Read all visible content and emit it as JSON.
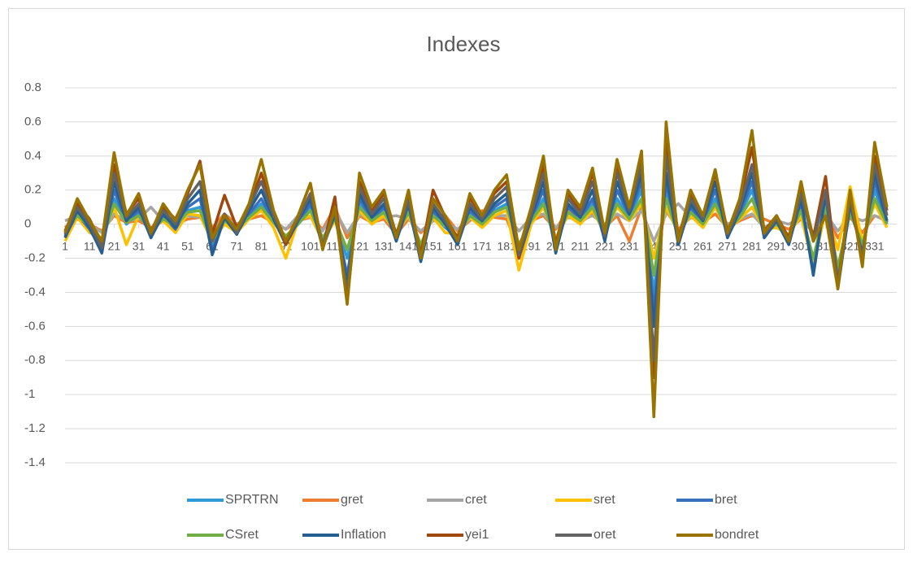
{
  "chart_data": {
    "type": "line",
    "title": "Indexes",
    "x": [
      1,
      6,
      11,
      16,
      21,
      26,
      31,
      36,
      41,
      46,
      51,
      56,
      61,
      66,
      71,
      76,
      81,
      86,
      91,
      96,
      101,
      106,
      111,
      116,
      121,
      126,
      131,
      136,
      141,
      146,
      151,
      156,
      161,
      166,
      171,
      176,
      181,
      186,
      191,
      196,
      201,
      206,
      211,
      216,
      221,
      226,
      231,
      236,
      241,
      246,
      251,
      256,
      261,
      266,
      271,
      276,
      281,
      286,
      291,
      296,
      301,
      306,
      311,
      316,
      321,
      326,
      331,
      336
    ],
    "xlim": [
      1,
      340
    ],
    "xticks": [
      1,
      11,
      21,
      31,
      41,
      51,
      61,
      71,
      81,
      91,
      101,
      111,
      121,
      131,
      141,
      151,
      161,
      171,
      181,
      191,
      201,
      211,
      221,
      231,
      241,
      251,
      261,
      271,
      281,
      291,
      301,
      311,
      321,
      331
    ],
    "ylim": [
      -1.4,
      0.8
    ],
    "yticks": [
      0.8,
      0.6,
      0.4,
      0.2,
      0,
      -0.2,
      -0.4,
      -0.6,
      -0.8,
      -1,
      -1.2,
      -1.4
    ],
    "grid": true,
    "series": [
      {
        "name": "SPRTRN",
        "color": "#2e9bd6",
        "values": [
          -0.05,
          0.05,
          -0.02,
          -0.12,
          0.15,
          0.0,
          0.06,
          -0.05,
          0.04,
          -0.02,
          0.08,
          0.1,
          -0.12,
          0.02,
          -0.04,
          0.05,
          0.12,
          0.01,
          -0.08,
          0.0,
          0.1,
          -0.1,
          0.04,
          -0.2,
          0.12,
          0.02,
          0.08,
          -0.07,
          0.08,
          -0.15,
          0.06,
          -0.02,
          -0.08,
          0.06,
          0.0,
          0.08,
          0.12,
          -0.15,
          0.02,
          0.15,
          -0.12,
          0.08,
          0.02,
          0.12,
          -0.07,
          0.15,
          0.04,
          0.2,
          -0.4,
          0.2,
          -0.08,
          0.08,
          0.0,
          0.15,
          -0.05,
          0.05,
          0.2,
          -0.05,
          0.0,
          -0.08,
          0.1,
          -0.25,
          0.12,
          -0.3,
          0.08,
          -0.14,
          0.2,
          0.0
        ]
      },
      {
        "name": "gret",
        "color": "#ed7d31",
        "values": [
          -0.02,
          0.03,
          0.0,
          -0.04,
          0.05,
          0.01,
          0.02,
          -0.02,
          0.02,
          0.0,
          0.03,
          0.04,
          -0.02,
          0.06,
          0.0,
          0.03,
          0.05,
          0.01,
          -0.03,
          0.02,
          0.04,
          -0.03,
          0.1,
          -0.08,
          0.05,
          0.01,
          0.03,
          -0.06,
          0.03,
          -0.05,
          0.02,
          0.05,
          -0.04,
          0.02,
          0.08,
          0.04,
          0.03,
          -0.15,
          0.02,
          0.05,
          -0.03,
          0.08,
          0.01,
          0.06,
          -0.02,
          0.05,
          -0.1,
          0.1,
          -0.2,
          0.08,
          -0.03,
          0.04,
          0.01,
          0.06,
          -0.02,
          0.02,
          0.05,
          0.03,
          0.0,
          -0.03,
          0.03,
          -0.05,
          0.06,
          -0.08,
          0.04,
          -0.05,
          0.05,
          0.02
        ]
      },
      {
        "name": "cret",
        "color": "#a5a5a5",
        "values": [
          0.02,
          0.05,
          0.0,
          -0.05,
          0.06,
          0.02,
          0.03,
          0.1,
          0.02,
          0.0,
          0.05,
          0.04,
          -0.03,
          0.03,
          0.0,
          0.04,
          0.08,
          0.02,
          -0.03,
          0.05,
          0.04,
          -0.04,
          0.08,
          -0.05,
          0.06,
          0.02,
          0.04,
          0.05,
          0.03,
          -0.04,
          0.02,
          0.01,
          -0.03,
          0.03,
          0.02,
          0.05,
          0.05,
          -0.04,
          0.04,
          0.06,
          -0.02,
          0.04,
          0.02,
          0.05,
          0.0,
          0.06,
          0.02,
          0.08,
          -0.1,
          0.06,
          0.12,
          0.04,
          0.02,
          0.1,
          0.0,
          0.03,
          0.06,
          -0.02,
          0.02,
          0.0,
          0.04,
          -0.05,
          0.06,
          -0.04,
          0.05,
          0.02,
          0.05,
          0.02
        ]
      },
      {
        "name": "sret",
        "color": "#ffc000",
        "values": [
          -0.1,
          0.04,
          -0.05,
          -0.08,
          0.1,
          -0.12,
          0.05,
          -0.03,
          0.02,
          -0.05,
          0.06,
          0.05,
          -0.1,
          0.0,
          -0.05,
          0.03,
          0.08,
          -0.02,
          -0.2,
          0.02,
          0.05,
          -0.1,
          0.02,
          -0.15,
          0.08,
          0.0,
          0.05,
          -0.05,
          0.05,
          -0.12,
          0.04,
          -0.05,
          -0.06,
          0.04,
          -0.02,
          0.05,
          0.08,
          -0.27,
          0.0,
          0.1,
          -0.08,
          0.05,
          0.0,
          0.08,
          -0.05,
          0.1,
          0.02,
          0.12,
          -0.2,
          0.1,
          -0.05,
          0.05,
          -0.02,
          0.1,
          -0.04,
          0.03,
          0.1,
          -0.03,
          -0.02,
          -0.06,
          0.05,
          -0.25,
          0.08,
          -0.15,
          0.22,
          -0.1,
          0.12,
          -0.02
        ]
      },
      {
        "name": "bret",
        "color": "#3a6fbd",
        "values": [
          -0.07,
          0.06,
          -0.03,
          -0.15,
          0.2,
          0.01,
          0.08,
          -0.07,
          0.05,
          -0.03,
          0.1,
          0.15,
          -0.15,
          0.03,
          -0.05,
          0.06,
          0.15,
          0.02,
          -0.1,
          0.01,
          0.12,
          -0.12,
          0.05,
          -0.3,
          0.15,
          0.03,
          0.1,
          -0.09,
          0.1,
          -0.2,
          0.08,
          -0.01,
          -0.1,
          0.08,
          0.01,
          0.1,
          0.15,
          -0.18,
          0.03,
          0.2,
          -0.15,
          0.1,
          0.03,
          0.15,
          -0.09,
          0.2,
          0.05,
          0.25,
          -0.5,
          0.25,
          -0.1,
          0.1,
          0.01,
          0.2,
          -0.07,
          0.06,
          0.25,
          -0.07,
          0.01,
          -0.1,
          0.12,
          -0.28,
          0.15,
          -0.35,
          0.1,
          -0.16,
          0.25,
          0.01
        ]
      },
      {
        "name": "CSret",
        "color": "#70ad47",
        "values": [
          -0.04,
          0.05,
          -0.01,
          -0.1,
          0.12,
          0.01,
          0.05,
          -0.04,
          0.03,
          -0.01,
          0.07,
          0.08,
          -0.1,
          0.02,
          -0.03,
          0.04,
          0.1,
          0.01,
          -0.07,
          0.0,
          0.08,
          -0.08,
          0.03,
          -0.15,
          0.1,
          0.02,
          0.07,
          -0.06,
          0.07,
          -0.12,
          0.05,
          -0.01,
          -0.07,
          0.05,
          0.0,
          0.07,
          0.1,
          -0.12,
          0.02,
          0.12,
          -0.1,
          0.07,
          0.02,
          0.1,
          -0.06,
          0.12,
          0.03,
          0.15,
          -0.3,
          0.15,
          -0.07,
          0.07,
          0.0,
          0.12,
          -0.04,
          0.04,
          0.15,
          -0.04,
          0.0,
          -0.07,
          0.08,
          -0.2,
          0.1,
          -0.25,
          0.07,
          -0.12,
          0.15,
          0.0
        ]
      },
      {
        "name": "Inflation",
        "color": "#255e91",
        "values": [
          -0.08,
          0.08,
          -0.02,
          -0.17,
          0.25,
          0.02,
          0.1,
          -0.08,
          0.06,
          -0.02,
          0.12,
          0.2,
          -0.18,
          0.04,
          -0.06,
          0.08,
          0.2,
          0.03,
          -0.12,
          0.02,
          0.15,
          -0.14,
          0.06,
          -0.35,
          0.18,
          0.04,
          0.12,
          -0.1,
          0.12,
          -0.22,
          0.1,
          0.0,
          -0.12,
          0.1,
          0.02,
          0.12,
          0.18,
          -0.2,
          0.04,
          0.25,
          -0.17,
          0.12,
          0.04,
          0.2,
          -0.1,
          0.25,
          0.06,
          0.3,
          -0.6,
          0.3,
          -0.12,
          0.12,
          0.02,
          0.25,
          -0.08,
          0.08,
          0.3,
          -0.08,
          0.02,
          -0.12,
          0.15,
          -0.3,
          0.18,
          -0.38,
          0.12,
          -0.18,
          0.3,
          0.02
        ]
      },
      {
        "name": "yei1",
        "color": "#9e480e",
        "values": [
          -0.04,
          0.12,
          0.03,
          -0.12,
          0.35,
          0.06,
          0.15,
          -0.04,
          0.1,
          0.03,
          0.18,
          0.37,
          -0.06,
          0.17,
          -0.02,
          0.1,
          0.3,
          0.06,
          -0.12,
          0.05,
          0.24,
          -0.14,
          0.16,
          -0.45,
          0.25,
          0.08,
          0.18,
          -0.06,
          0.16,
          -0.18,
          0.2,
          0.04,
          -0.08,
          0.15,
          0.05,
          0.18,
          0.25,
          -0.2,
          0.08,
          0.35,
          -0.12,
          0.18,
          0.08,
          0.3,
          -0.06,
          0.35,
          0.1,
          0.4,
          -0.9,
          0.5,
          -0.08,
          0.18,
          0.05,
          0.3,
          -0.04,
          0.13,
          0.45,
          -0.04,
          0.05,
          -0.08,
          0.22,
          -0.08,
          0.28,
          -0.35,
          0.18,
          -0.22,
          0.4,
          0.08
        ]
      },
      {
        "name": "oret",
        "color": "#636363",
        "values": [
          -0.06,
          0.1,
          0.0,
          -0.14,
          0.3,
          0.04,
          0.12,
          -0.06,
          0.08,
          0.0,
          0.15,
          0.25,
          -0.1,
          0.06,
          -0.05,
          0.1,
          0.25,
          0.05,
          -0.1,
          0.03,
          0.18,
          -0.12,
          0.08,
          -0.4,
          0.22,
          0.06,
          0.15,
          -0.08,
          0.14,
          -0.2,
          0.12,
          0.02,
          -0.1,
          0.12,
          0.03,
          0.15,
          0.22,
          -0.18,
          0.06,
          0.3,
          -0.14,
          0.15,
          0.06,
          0.25,
          -0.07,
          0.3,
          0.08,
          0.35,
          -0.8,
          0.4,
          -0.1,
          0.15,
          0.03,
          0.32,
          -0.06,
          0.1,
          0.35,
          -0.06,
          0.03,
          -0.1,
          0.18,
          -0.1,
          0.2,
          -0.36,
          0.15,
          -0.2,
          0.35,
          0.05
        ]
      },
      {
        "name": "bondret",
        "color": "#997300",
        "values": [
          -0.05,
          0.15,
          0.02,
          -0.1,
          0.42,
          0.05,
          0.18,
          -0.05,
          0.12,
          0.02,
          0.2,
          0.35,
          -0.08,
          0.05,
          -0.03,
          0.12,
          0.38,
          0.08,
          -0.1,
          0.05,
          0.24,
          -0.15,
          0.1,
          -0.47,
          0.3,
          0.1,
          0.2,
          -0.08,
          0.2,
          -0.2,
          0.15,
          0.05,
          -0.1,
          0.18,
          0.05,
          0.2,
          0.29,
          -0.15,
          0.1,
          0.4,
          -0.15,
          0.2,
          0.1,
          0.33,
          -0.05,
          0.38,
          0.1,
          0.43,
          -1.13,
          0.6,
          -0.1,
          0.2,
          0.05,
          0.32,
          -0.05,
          0.15,
          0.55,
          -0.05,
          0.05,
          -0.1,
          0.25,
          -0.1,
          0.05,
          -0.38,
          0.2,
          -0.25,
          0.48,
          0.1
        ]
      }
    ]
  }
}
